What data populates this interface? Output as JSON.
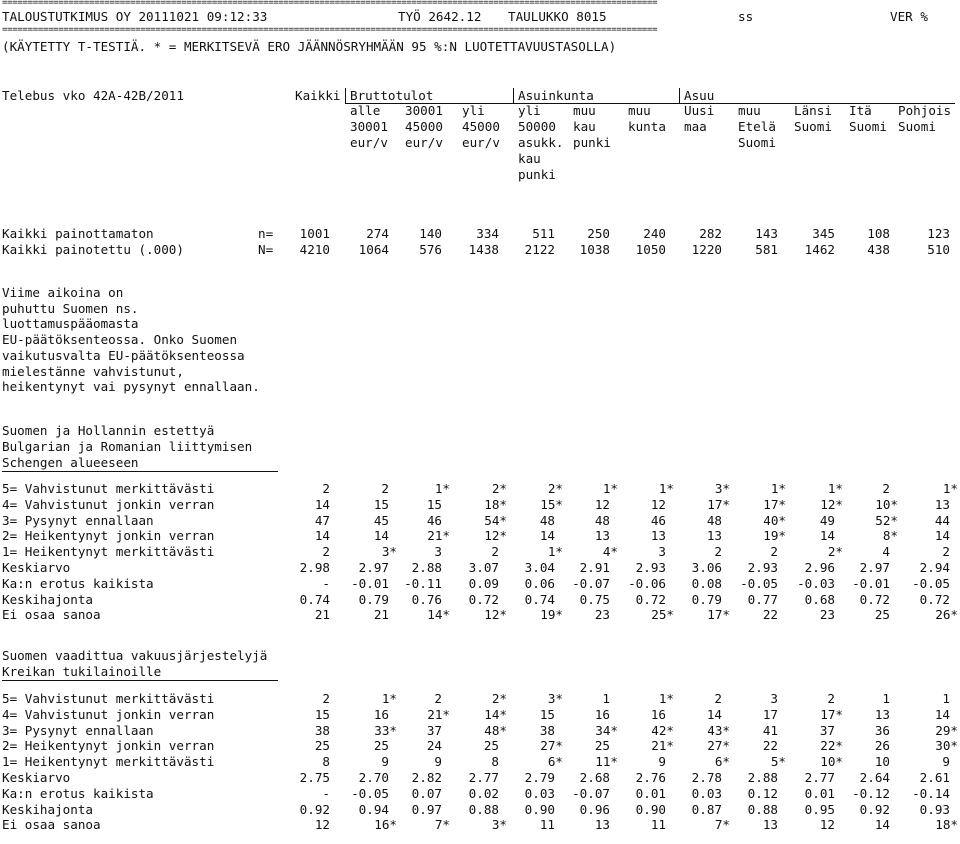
{
  "top": {
    "rule": "================================================================================================================================",
    "title_left": "TALOUSTUTKIMUS OY 20111021 09:12:33",
    "title_work": "TYÖ 2642.12",
    "title_table": "TAULUKKO 8015",
    "title_ss": "ss",
    "title_ver": "VER %",
    "note": "(KÄYTETTY T-TESTIÄ. * = MERKITSEVÄ ERO JÄÄNNÖSRYHMÄÄN 95 %:N LUOTETTAVUUSTASOLLA)"
  },
  "survey": "Telebus vko 42A-42B/2011",
  "header": {
    "kaikki": "Kaikki",
    "groups": [
      {
        "label": "Bruttotulot"
      },
      {
        "label": "Asuinkunta"
      },
      {
        "label": "Asuu"
      }
    ],
    "columns": [
      [
        "alle",
        "30001",
        "eur/v"
      ],
      [
        "30001",
        "45000",
        "eur/v"
      ],
      [
        "yli",
        "45000",
        "eur/v"
      ],
      [
        "yli",
        "50000",
        "asukk.",
        "kau",
        "punki"
      ],
      [
        "muu",
        "kau",
        "punki"
      ],
      [
        "muu",
        "kunta"
      ],
      [
        "Uusi",
        "maa"
      ],
      [
        "muu",
        "Etelä",
        "Suomi"
      ],
      [
        "Länsi",
        "Suomi"
      ],
      [
        "Itä",
        "Suomi"
      ],
      [
        "Pohjois",
        "Suomi"
      ]
    ]
  },
  "base": [
    {
      "label": "Kaikki painottamaton",
      "sym": "n=",
      "values": [
        "1001",
        "274",
        "140",
        "334",
        "511",
        "250",
        "240",
        "282",
        "143",
        "345",
        "108",
        "123"
      ]
    },
    {
      "label": "Kaikki painotettu (.000)",
      "sym": "N=",
      "values": [
        "4210",
        "1064",
        "576",
        "1438",
        "2122",
        "1038",
        "1050",
        "1220",
        "581",
        "1462",
        "438",
        "510"
      ]
    }
  ],
  "question": [
    "Viime aikoina on",
    "puhuttu Suomen ns.",
    "luottamuspääomasta",
    "EU-päätöksenteossa. Onko Suomen",
    "vaikutusvalta EU-päätöksenteossa",
    "mielestänne vahvistunut,",
    "heikentynyt vai pysynyt ennallaan."
  ],
  "sections": [
    {
      "title": [
        "Suomen ja Hollannin estettyä",
        "Bulgarian ja Romanian liittymisen",
        "Schengen alueeseen"
      ],
      "rows": [
        {
          "label": "5= Vahvistunut merkittävästi",
          "values": [
            "2",
            "2",
            "1*",
            "2*",
            "2*",
            "1*",
            "1*",
            "3*",
            "1*",
            "1*",
            "2",
            "1*"
          ]
        },
        {
          "label": "4= Vahvistunut jonkin verran",
          "values": [
            "14",
            "15",
            "15",
            "18*",
            "15*",
            "12",
            "12",
            "17*",
            "17*",
            "12*",
            "10*",
            "13"
          ]
        },
        {
          "label": "3= Pysynyt ennallaan",
          "values": [
            "47",
            "45",
            "46",
            "54*",
            "48",
            "48",
            "46",
            "48",
            "40*",
            "49",
            "52*",
            "44"
          ]
        },
        {
          "label": "2= Heikentynyt jonkin verran",
          "values": [
            "14",
            "14",
            "21*",
            "12*",
            "14",
            "13",
            "13",
            "13",
            "19*",
            "14",
            "8*",
            "14"
          ]
        },
        {
          "label": "1= Heikentynyt merkittävästi",
          "values": [
            "2",
            "3*",
            "3",
            "2",
            "1*",
            "4*",
            "3",
            "2",
            "2",
            "2*",
            "4",
            "2"
          ]
        },
        {
          "label": "Keskiarvo",
          "values": [
            "2.98",
            "2.97",
            "2.88",
            "3.07",
            "3.04",
            "2.91",
            "2.93",
            "3.06",
            "2.93",
            "2.96",
            "2.97",
            "2.94"
          ]
        },
        {
          "label": "Ka:n erotus kaikista",
          "values": [
            "-",
            "-0.01",
            "-0.11",
            "0.09",
            "0.06",
            "-0.07",
            "-0.06",
            "0.08",
            "-0.05",
            "-0.03",
            "-0.01",
            "-0.05"
          ]
        },
        {
          "label": "Keskihajonta",
          "values": [
            "0.74",
            "0.79",
            "0.76",
            "0.72",
            "0.74",
            "0.75",
            "0.72",
            "0.79",
            "0.77",
            "0.68",
            "0.72",
            "0.72"
          ]
        },
        {
          "label": "Ei osaa sanoa",
          "values": [
            "21",
            "21",
            "14*",
            "12*",
            "19*",
            "23",
            "25*",
            "17*",
            "22",
            "23",
            "25",
            "26*"
          ]
        }
      ]
    },
    {
      "title": [
        "Suomen vaadittua vakuusjärjestelyjä",
        "Kreikan tukilainoille"
      ],
      "rows": [
        {
          "label": "5= Vahvistunut merkittävästi",
          "values": [
            "2",
            "1*",
            "2",
            "2*",
            "3*",
            "1",
            "1*",
            "2",
            "3",
            "2",
            "1",
            "1"
          ]
        },
        {
          "label": "4= Vahvistunut jonkin verran",
          "values": [
            "15",
            "16",
            "21*",
            "14*",
            "15",
            "16",
            "16",
            "14",
            "17",
            "17*",
            "13",
            "14"
          ]
        },
        {
          "label": "3= Pysynyt ennallaan",
          "values": [
            "38",
            "33*",
            "37",
            "48*",
            "38",
            "34*",
            "42*",
            "43*",
            "41",
            "37",
            "36",
            "29*"
          ]
        },
        {
          "label": "2= Heikentynyt jonkin verran",
          "values": [
            "25",
            "25",
            "24",
            "25",
            "27*",
            "25",
            "21*",
            "27*",
            "22",
            "22*",
            "26",
            "30*"
          ]
        },
        {
          "label": "1= Heikentynyt merkittävästi",
          "values": [
            "8",
            "9",
            "9",
            "8",
            "6*",
            "11*",
            "9",
            "6*",
            "5*",
            "10*",
            "10",
            "9"
          ]
        },
        {
          "label": "Keskiarvo",
          "values": [
            "2.75",
            "2.70",
            "2.82",
            "2.77",
            "2.79",
            "2.68",
            "2.76",
            "2.78",
            "2.88",
            "2.77",
            "2.64",
            "2.61"
          ]
        },
        {
          "label": "Ka:n erotus kaikista",
          "values": [
            "-",
            "-0.05",
            "0.07",
            "0.02",
            "0.03",
            "-0.07",
            "0.01",
            "0.03",
            "0.12",
            "0.01",
            "-0.12",
            "-0.14"
          ]
        },
        {
          "label": "Keskihajonta",
          "values": [
            "0.92",
            "0.94",
            "0.97",
            "0.88",
            "0.90",
            "0.96",
            "0.90",
            "0.87",
            "0.88",
            "0.95",
            "0.92",
            "0.93"
          ]
        },
        {
          "label": "Ei osaa sanoa",
          "values": [
            "12",
            "16*",
            "7*",
            "3*",
            "11",
            "13",
            "11",
            "7*",
            "13",
            "12",
            "14",
            "18*"
          ]
        }
      ]
    }
  ]
}
